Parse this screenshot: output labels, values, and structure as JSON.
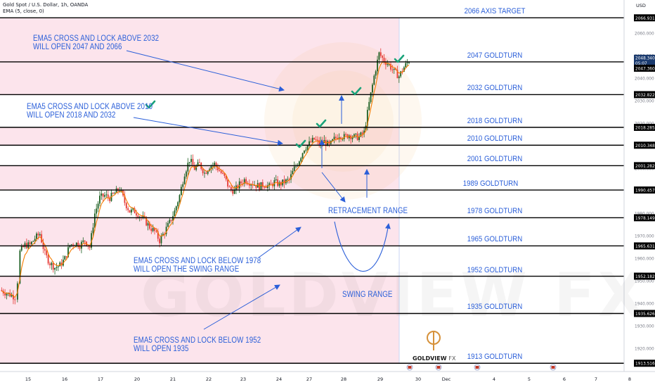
{
  "header": {
    "symbol_line": "Gold Spot / U.S. Dollar, 1h, OANDA",
    "indicator_line": "EMA (5, close, 0)"
  },
  "currency": "USD",
  "watermark": "GOLDVIEW FX",
  "logo": {
    "name": "GOLDVIEW",
    "suffix": "FX",
    "color": "#d6913a"
  },
  "colors": {
    "pink_zone": "#fce4ec",
    "annotation_blue": "#2b5fd9",
    "bull_candle": "#1b5e20",
    "bear_candle": "#e53935",
    "ema": "#f57c00",
    "level_line": "#000000",
    "check_green": "#1aa37a",
    "price_label_bg": "#1a3a6e"
  },
  "annotations": {
    "ema_2032": [
      "EMA5 CROSS AND LOCK ABOVE 2032",
      "WILL OPEN 2047 AND 2066"
    ],
    "ema_2010": [
      "EMA5 CROSS AND LOCK ABOVE 2010",
      "WILL OPEN 2018 AND 2032"
    ],
    "ema_1978": [
      "EMA5 CROSS AND LOCK BELOW 1978",
      "WILL OPEN THE SWING RANGE"
    ],
    "ema_1952": [
      "EMA5 CROSS AND LOCK BELOW 1952",
      "WILL OPEN 1935"
    ],
    "retracement": "RETRACEMENT RANGE",
    "swing": "SWING RANGE"
  },
  "chart_data": {
    "type": "candlestick",
    "title": "Gold Spot / U.S. Dollar, 1h, OANDA",
    "indicator": "EMA (5, close, 0)",
    "xlabel": "",
    "ylabel": "USD",
    "ylim": [
      1912,
      2072
    ],
    "x_ticks": [
      "15",
      "16",
      "17",
      "20",
      "21",
      "22",
      "23",
      "24",
      "27",
      "28",
      "29",
      "30",
      "Dec",
      "4",
      "5",
      "6",
      "7",
      "8"
    ],
    "y_ticks": [
      1920,
      1930,
      1940,
      1950,
      1960,
      1970,
      1980,
      1990,
      2000,
      2010,
      2020,
      2030,
      2040,
      2050,
      2060
    ],
    "levels": [
      {
        "label": "2066 AXIS TARGET",
        "value": 2066.931
      },
      {
        "label": "2047 GOLDTURN",
        "value": 2047.36
      },
      {
        "label": "2032 GOLDTURN",
        "value": 2032.822
      },
      {
        "label": "2018 GOLDTURN",
        "value": 2018.285
      },
      {
        "label": "2010 GOLDTURN",
        "value": 2010.348
      },
      {
        "label": "2001 GOLDTURN",
        "value": 2001.282
      },
      {
        "label": "1989 GOLDTURN",
        "value": 1990.457
      },
      {
        "label": "1978 GOLDTURN",
        "value": 1978.149
      },
      {
        "label": "1965 GOLDTURN",
        "value": 1965.631
      },
      {
        "label": "1952 GOLDTURN",
        "value": 1952.182
      },
      {
        "label": "1935 GOLDTURN",
        "value": 1935.626
      },
      {
        "label": "1913 GOLDTURN",
        "value": 1913.516
      }
    ],
    "level_price_labels": [
      "2066.931",
      "2032.822",
      "2018.285",
      "2010.348",
      "2001.282",
      "1990.457",
      "1978.149",
      "1965.631",
      "1952.182",
      "1935.626",
      "1913.516"
    ],
    "current_price": {
      "value": "2048.340",
      "timer": "05:07",
      "prev": "2047.360"
    },
    "price_path": [
      [
        0,
        1946
      ],
      [
        1,
        1945
      ],
      [
        2,
        1944
      ],
      [
        3,
        1943
      ],
      [
        3.5,
        1950
      ],
      [
        4,
        1963
      ],
      [
        5,
        1966
      ],
      [
        6,
        1966
      ],
      [
        7,
        1969
      ],
      [
        8,
        1971
      ],
      [
        9,
        1962
      ],
      [
        10,
        1958
      ],
      [
        11,
        1956
      ],
      [
        12,
        1957
      ],
      [
        13,
        1960
      ],
      [
        14,
        1966
      ],
      [
        15,
        1967
      ],
      [
        16,
        1966
      ],
      [
        17,
        1968
      ],
      [
        18,
        1965
      ],
      [
        19,
        1980
      ],
      [
        20,
        1987
      ],
      [
        21,
        1988
      ],
      [
        22,
        1987
      ],
      [
        23,
        1989
      ],
      [
        24,
        1991
      ],
      [
        25,
        1985
      ],
      [
        26,
        1981
      ],
      [
        27,
        1981
      ],
      [
        28,
        1979
      ],
      [
        29,
        1977
      ],
      [
        30,
        1974
      ],
      [
        31,
        1972
      ],
      [
        32,
        1968
      ],
      [
        33,
        1972
      ],
      [
        34,
        1976
      ],
      [
        35,
        1981
      ],
      [
        36,
        1988
      ],
      [
        37,
        1998
      ],
      [
        38,
        2004
      ],
      [
        39,
        2000
      ],
      [
        40,
        2002
      ],
      [
        41,
        1998
      ],
      [
        42,
        2001
      ],
      [
        43,
        2002
      ],
      [
        44,
        1999
      ],
      [
        45,
        1996
      ],
      [
        46,
        1991
      ],
      [
        47,
        1990
      ],
      [
        48,
        1993
      ],
      [
        49,
        1995
      ],
      [
        50,
        1994
      ],
      [
        51,
        1993
      ],
      [
        52,
        1992
      ],
      [
        53,
        1993
      ],
      [
        54,
        1992
      ],
      [
        55,
        1994
      ],
      [
        56,
        1993
      ],
      [
        57,
        1994
      ],
      [
        58,
        1995
      ],
      [
        59,
        2000
      ],
      [
        60,
        2004
      ],
      [
        61,
        2009
      ],
      [
        62,
        2011
      ],
      [
        63,
        2013
      ],
      [
        64,
        2011
      ],
      [
        65,
        2012
      ],
      [
        66,
        2010
      ],
      [
        67,
        2013
      ],
      [
        68,
        2015
      ],
      [
        69,
        2014
      ],
      [
        70,
        2015
      ],
      [
        71,
        2014
      ],
      [
        72,
        2014
      ],
      [
        73,
        2016
      ],
      [
        74,
        2029
      ],
      [
        75,
        2041
      ],
      [
        76,
        2051
      ],
      [
        77,
        2048
      ],
      [
        78,
        2046
      ],
      [
        79,
        2043
      ],
      [
        80,
        2041
      ],
      [
        81,
        2045
      ],
      [
        82,
        2048
      ]
    ]
  }
}
